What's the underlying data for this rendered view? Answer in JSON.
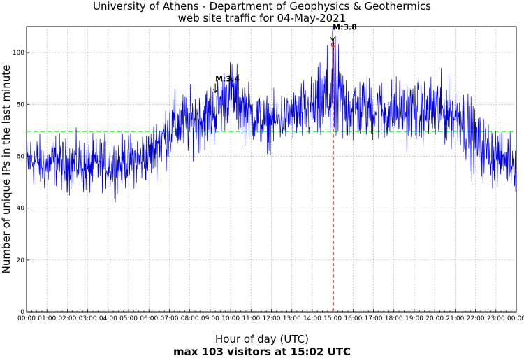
{
  "chart_data": {
    "type": "line",
    "title": "University of Athens - Department of Geophysics & Geothermics",
    "subtitle": "web site traffic for 04-May-2021",
    "xlabel": "Hour of day (UTC)",
    "ylabel": "Number of unique IPs in the last minute",
    "caption": "max 103 visitors at 15:02 UTC",
    "xlim": [
      0,
      24
    ],
    "ylim": [
      0,
      110
    ],
    "grid": true,
    "x_tick_labels": [
      "00:00",
      "01:00",
      "02:00",
      "03:00",
      "04:00",
      "05:00",
      "06:00",
      "07:00",
      "08:00",
      "09:00",
      "10:00",
      "11:00",
      "12:00",
      "13:00",
      "14:00",
      "15:00",
      "16:00",
      "17:00",
      "18:00",
      "19:00",
      "20:00",
      "21:00",
      "22:00",
      "23:00",
      "00:00"
    ],
    "y_ticks": [
      0,
      20,
      40,
      60,
      80,
      100
    ],
    "average_line": {
      "value": 69.5,
      "color": "#44ee44"
    },
    "max_marker": {
      "x": 15.033,
      "y": 103,
      "color": "#dd2222"
    },
    "series": [
      {
        "color": "#0000dd",
        "x": [
          0,
          0.25,
          0.5,
          0.75,
          1,
          1.25,
          1.5,
          1.75,
          2,
          2.25,
          2.5,
          2.75,
          3,
          3.25,
          3.5,
          3.75,
          4,
          4.25,
          4.5,
          4.75,
          5,
          5.25,
          5.5,
          5.75,
          6,
          6.25,
          6.5,
          6.75,
          7,
          7.25,
          7.5,
          7.75,
          8,
          8.25,
          8.5,
          8.75,
          9,
          9.25,
          9.5,
          9.75,
          10,
          10.25,
          10.5,
          10.75,
          11,
          11.25,
          11.5,
          11.75,
          12,
          12.25,
          12.5,
          12.75,
          13,
          13.25,
          13.5,
          13.75,
          14,
          14.25,
          14.5,
          14.75,
          15,
          15.25,
          15.5,
          15.75,
          16,
          16.25,
          16.5,
          16.75,
          17,
          17.25,
          17.5,
          17.75,
          18,
          18.25,
          18.5,
          18.75,
          19,
          19.25,
          19.5,
          19.75,
          20,
          20.25,
          20.5,
          20.75,
          21,
          21.25,
          21.5,
          21.75,
          22,
          22.25,
          22.5,
          22.75,
          23,
          23.25,
          23.5,
          23.75,
          24
        ],
        "y": [
          57,
          59,
          58,
          57,
          56,
          58,
          59,
          57,
          56,
          57,
          58,
          56,
          55,
          57,
          56,
          58,
          57,
          56,
          57,
          58,
          58,
          59,
          58,
          60,
          60,
          63,
          66,
          68,
          70,
          72,
          72,
          73,
          73,
          74,
          74,
          75,
          76,
          77,
          80,
          83,
          85,
          83,
          80,
          78,
          76,
          75,
          74,
          73,
          73,
          74,
          75,
          75,
          76,
          76,
          77,
          77,
          78,
          79,
          80,
          82,
          85,
          82,
          80,
          79,
          78,
          78,
          79,
          79,
          78,
          78,
          77,
          77,
          78,
          78,
          77,
          77,
          78,
          77,
          77,
          77,
          78,
          77,
          77,
          77,
          76,
          76,
          72,
          68,
          66,
          63,
          62,
          61,
          60,
          60,
          59,
          59,
          56
        ],
        "noise_amplitude": [
          5,
          5,
          5,
          5,
          5,
          5,
          5,
          5,
          5,
          5,
          5,
          5,
          5,
          5,
          5,
          5,
          5,
          5,
          5,
          5,
          5,
          5,
          5,
          5,
          5,
          5,
          6,
          6,
          6,
          6,
          6,
          6,
          6,
          6,
          6,
          6,
          6,
          6,
          6,
          6,
          6,
          6,
          6,
          6,
          5,
          5,
          5,
          5,
          5,
          5,
          5,
          5,
          5,
          5,
          6,
          6,
          6,
          7,
          8,
          10,
          12,
          10,
          8,
          7,
          7,
          6,
          6,
          6,
          6,
          6,
          6,
          6,
          6,
          6,
          6,
          6,
          6,
          6,
          6,
          6,
          8,
          7,
          6,
          6,
          6,
          6,
          7,
          7,
          6,
          6,
          6,
          6,
          6,
          5,
          5,
          5,
          5
        ]
      }
    ],
    "annotations": [
      {
        "text": "M:3.4",
        "x": 9.25,
        "y": 84,
        "arrow": true
      },
      {
        "text": "M:3.8",
        "x": 15.0,
        "y": 104,
        "arrow": true
      }
    ]
  }
}
